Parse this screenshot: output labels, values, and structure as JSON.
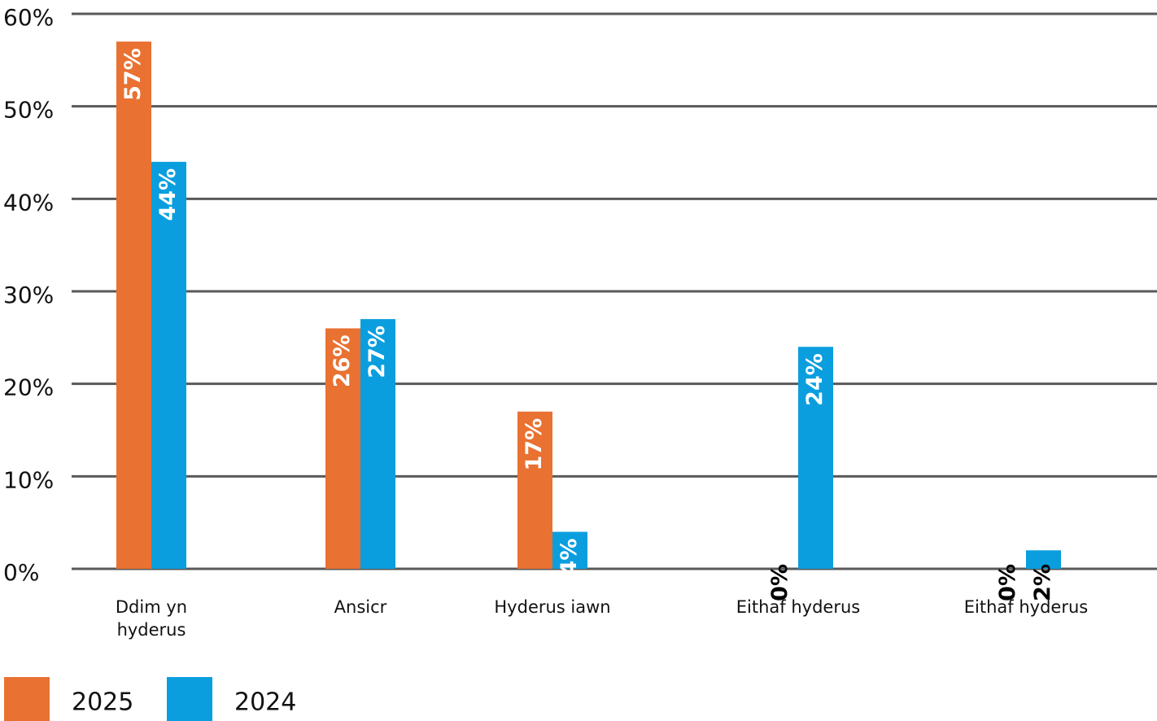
{
  "chart_data": {
    "type": "bar",
    "categories": [
      "Ddim yn hyderus",
      "Ansicr",
      "Hyderus iawn",
      "Eithaf hyderus",
      "Eithaf hyderus"
    ],
    "series": [
      {
        "name": "2025",
        "color": "#e97132",
        "values": [
          57,
          26,
          17,
          0,
          0
        ],
        "value_labels": [
          "57%",
          "26%",
          "17%",
          "0%",
          "0%"
        ]
      },
      {
        "name": "2024",
        "color": "#0a9ede",
        "values": [
          44,
          27,
          4,
          24,
          2
        ],
        "value_labels": [
          "44%",
          "27%",
          "4%",
          "24%",
          "2%"
        ]
      }
    ],
    "ylim": [
      0,
      60
    ],
    "yticks": [
      {
        "value": 0,
        "label": "0%"
      },
      {
        "value": 10,
        "label": "10%"
      },
      {
        "value": 20,
        "label": "20%"
      },
      {
        "value": 30,
        "label": "30%"
      },
      {
        "value": 40,
        "label": "40%"
      },
      {
        "value": 50,
        "label": "50%"
      },
      {
        "value": 60,
        "label": "60%"
      }
    ],
    "grid": true,
    "legend": "bottom-left"
  }
}
